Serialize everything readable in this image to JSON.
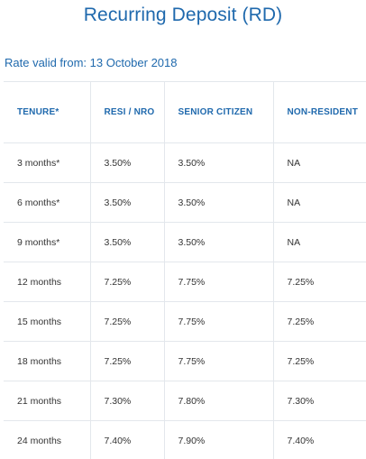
{
  "page": {
    "title": "Recurring Deposit (RD)",
    "rate_valid_from": "Rate valid from: 13 October 2018"
  },
  "table": {
    "headers": [
      "TENURE*",
      "RESI / NRO",
      "SENIOR CITIZEN",
      "NON-RESIDENT"
    ],
    "rows": [
      [
        "3 months*",
        "3.50%",
        "3.50%",
        "NA"
      ],
      [
        "6 months*",
        "3.50%",
        "3.50%",
        "NA"
      ],
      [
        "9 months*",
        "3.50%",
        "3.50%",
        "NA"
      ],
      [
        "12 months",
        "7.25%",
        "7.75%",
        "7.25%"
      ],
      [
        "15 months",
        "7.25%",
        "7.75%",
        "7.25%"
      ],
      [
        "18 months",
        "7.25%",
        "7.75%",
        "7.25%"
      ],
      [
        "21 months",
        "7.30%",
        "7.80%",
        "7.30%"
      ],
      [
        "24 months",
        "7.40%",
        "7.90%",
        "7.40%"
      ]
    ]
  },
  "colors": {
    "accent": "#1f69ad",
    "text": "#333333",
    "border": "#e3e7ec"
  }
}
